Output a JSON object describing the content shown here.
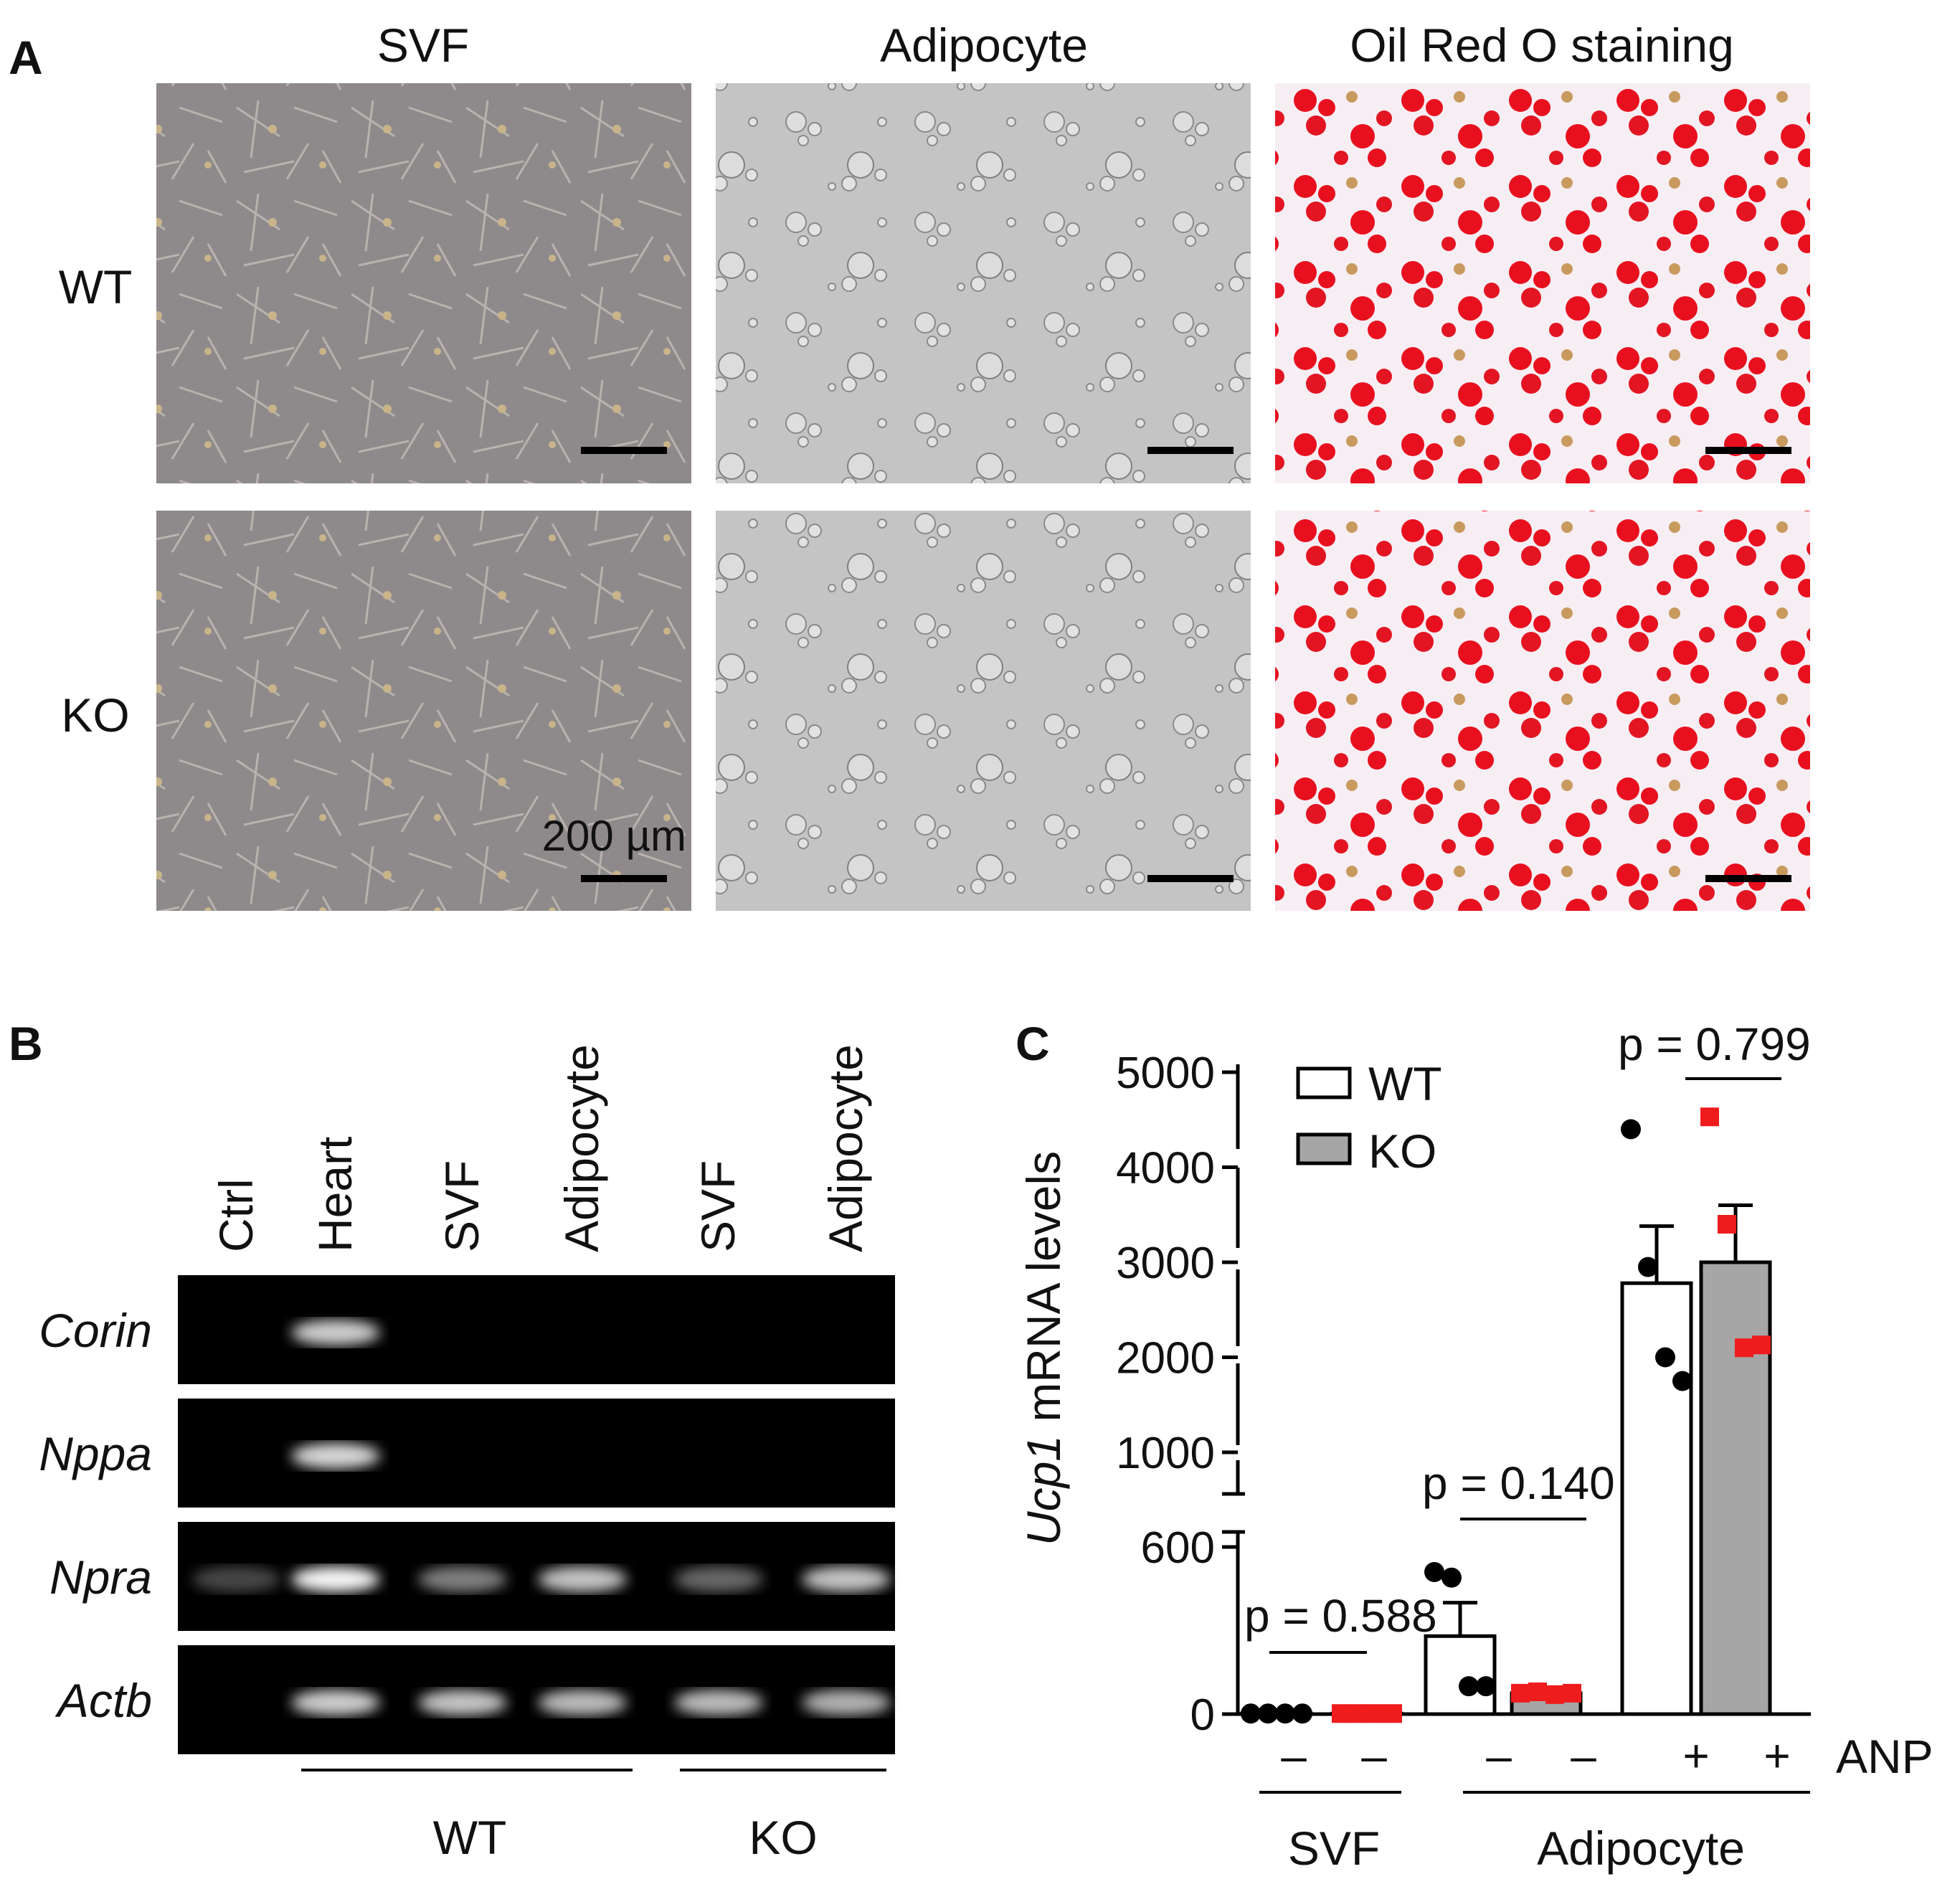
{
  "panel_a": {
    "label": "A",
    "column_titles": [
      "SVF",
      "Adipocyte",
      "Oil Red O staining"
    ],
    "row_labels": [
      "WT",
      "KO"
    ],
    "scale_bar_label": "200 µm"
  },
  "panel_b": {
    "label": "B",
    "lane_labels": [
      "Ctrl",
      "Heart",
      "SVF",
      "Adipocyte",
      "SVF",
      "Adipocyte"
    ],
    "gene_labels": [
      "Corin",
      "Nppa",
      "Npra",
      "Actb"
    ],
    "group_labels": [
      "WT",
      "KO"
    ],
    "band_intensity": [
      [
        0,
        0.75,
        0,
        0,
        0,
        0
      ],
      [
        0,
        0.8,
        0,
        0,
        0,
        0
      ],
      [
        0.05,
        0.95,
        0.35,
        0.7,
        0.22,
        0.7
      ],
      [
        0,
        0.75,
        0.7,
        0.65,
        0.65,
        0.6
      ]
    ]
  },
  "panel_c": {
    "label": "C",
    "ylabel_italic": "Ucp1",
    "ylabel_rest": " mRNA levels",
    "legend": [
      {
        "name": "WT",
        "color": "#ffffff"
      },
      {
        "name": "KO",
        "color": "#a6a6a6"
      }
    ],
    "anp_label": "ANP",
    "anp_signs": [
      "–",
      "–",
      "–",
      "–",
      "+",
      "+"
    ],
    "group_labels": [
      "SVF",
      "Adipocyte"
    ],
    "p_values": [
      "p = 0.588",
      "p = 0.140",
      "p = 0.799"
    ],
    "ticks_lower": [
      "0",
      "600"
    ],
    "ticks_upper": [
      "1000",
      "2000",
      "3000",
      "4000",
      "5000"
    ]
  },
  "chart_data": {
    "type": "bar",
    "ylabel": "Ucp1 mRNA levels",
    "axis_break": [
      650,
      900
    ],
    "ylim_lower": [
      0,
      650
    ],
    "ylim_upper": [
      900,
      5000
    ],
    "groups": [
      {
        "name": "SVF",
        "bars": [
          {
            "series": "WT",
            "anp": "–",
            "mean": 2,
            "sem": 0,
            "points": [
              2,
              2,
              2,
              2
            ]
          },
          {
            "series": "KO",
            "anp": "–",
            "mean": 2,
            "sem": 0,
            "points": [
              2,
              2,
              2,
              2
            ]
          }
        ],
        "p": "p = 0.588"
      },
      {
        "name": "Adipocyte",
        "bars": [
          {
            "series": "WT",
            "anp": "–",
            "mean": 280,
            "sem": 120,
            "points": [
              510,
              490,
              100,
              100
            ]
          },
          {
            "series": "KO",
            "anp": "–",
            "mean": 75,
            "sem": 10,
            "points": [
              75,
              80,
              70,
              75
            ]
          }
        ],
        "p": "p = 0.140"
      },
      {
        "name": "Adipocyte + ANP",
        "bars": [
          {
            "series": "WT",
            "anp": "+",
            "mean": 2780,
            "sem": 600,
            "points": [
              4400,
              2950,
              2000,
              1750
            ]
          },
          {
            "series": "KO",
            "anp": "+",
            "mean": 3000,
            "sem": 600,
            "points": [
              4530,
              3400,
              2100,
              2130
            ]
          }
        ],
        "p": "p = 0.799"
      }
    ],
    "colors": {
      "WT_point": "#000000",
      "KO_point": "#ee1c1c",
      "WT_bar": "#ffffff",
      "KO_bar": "#a6a6a6"
    }
  }
}
